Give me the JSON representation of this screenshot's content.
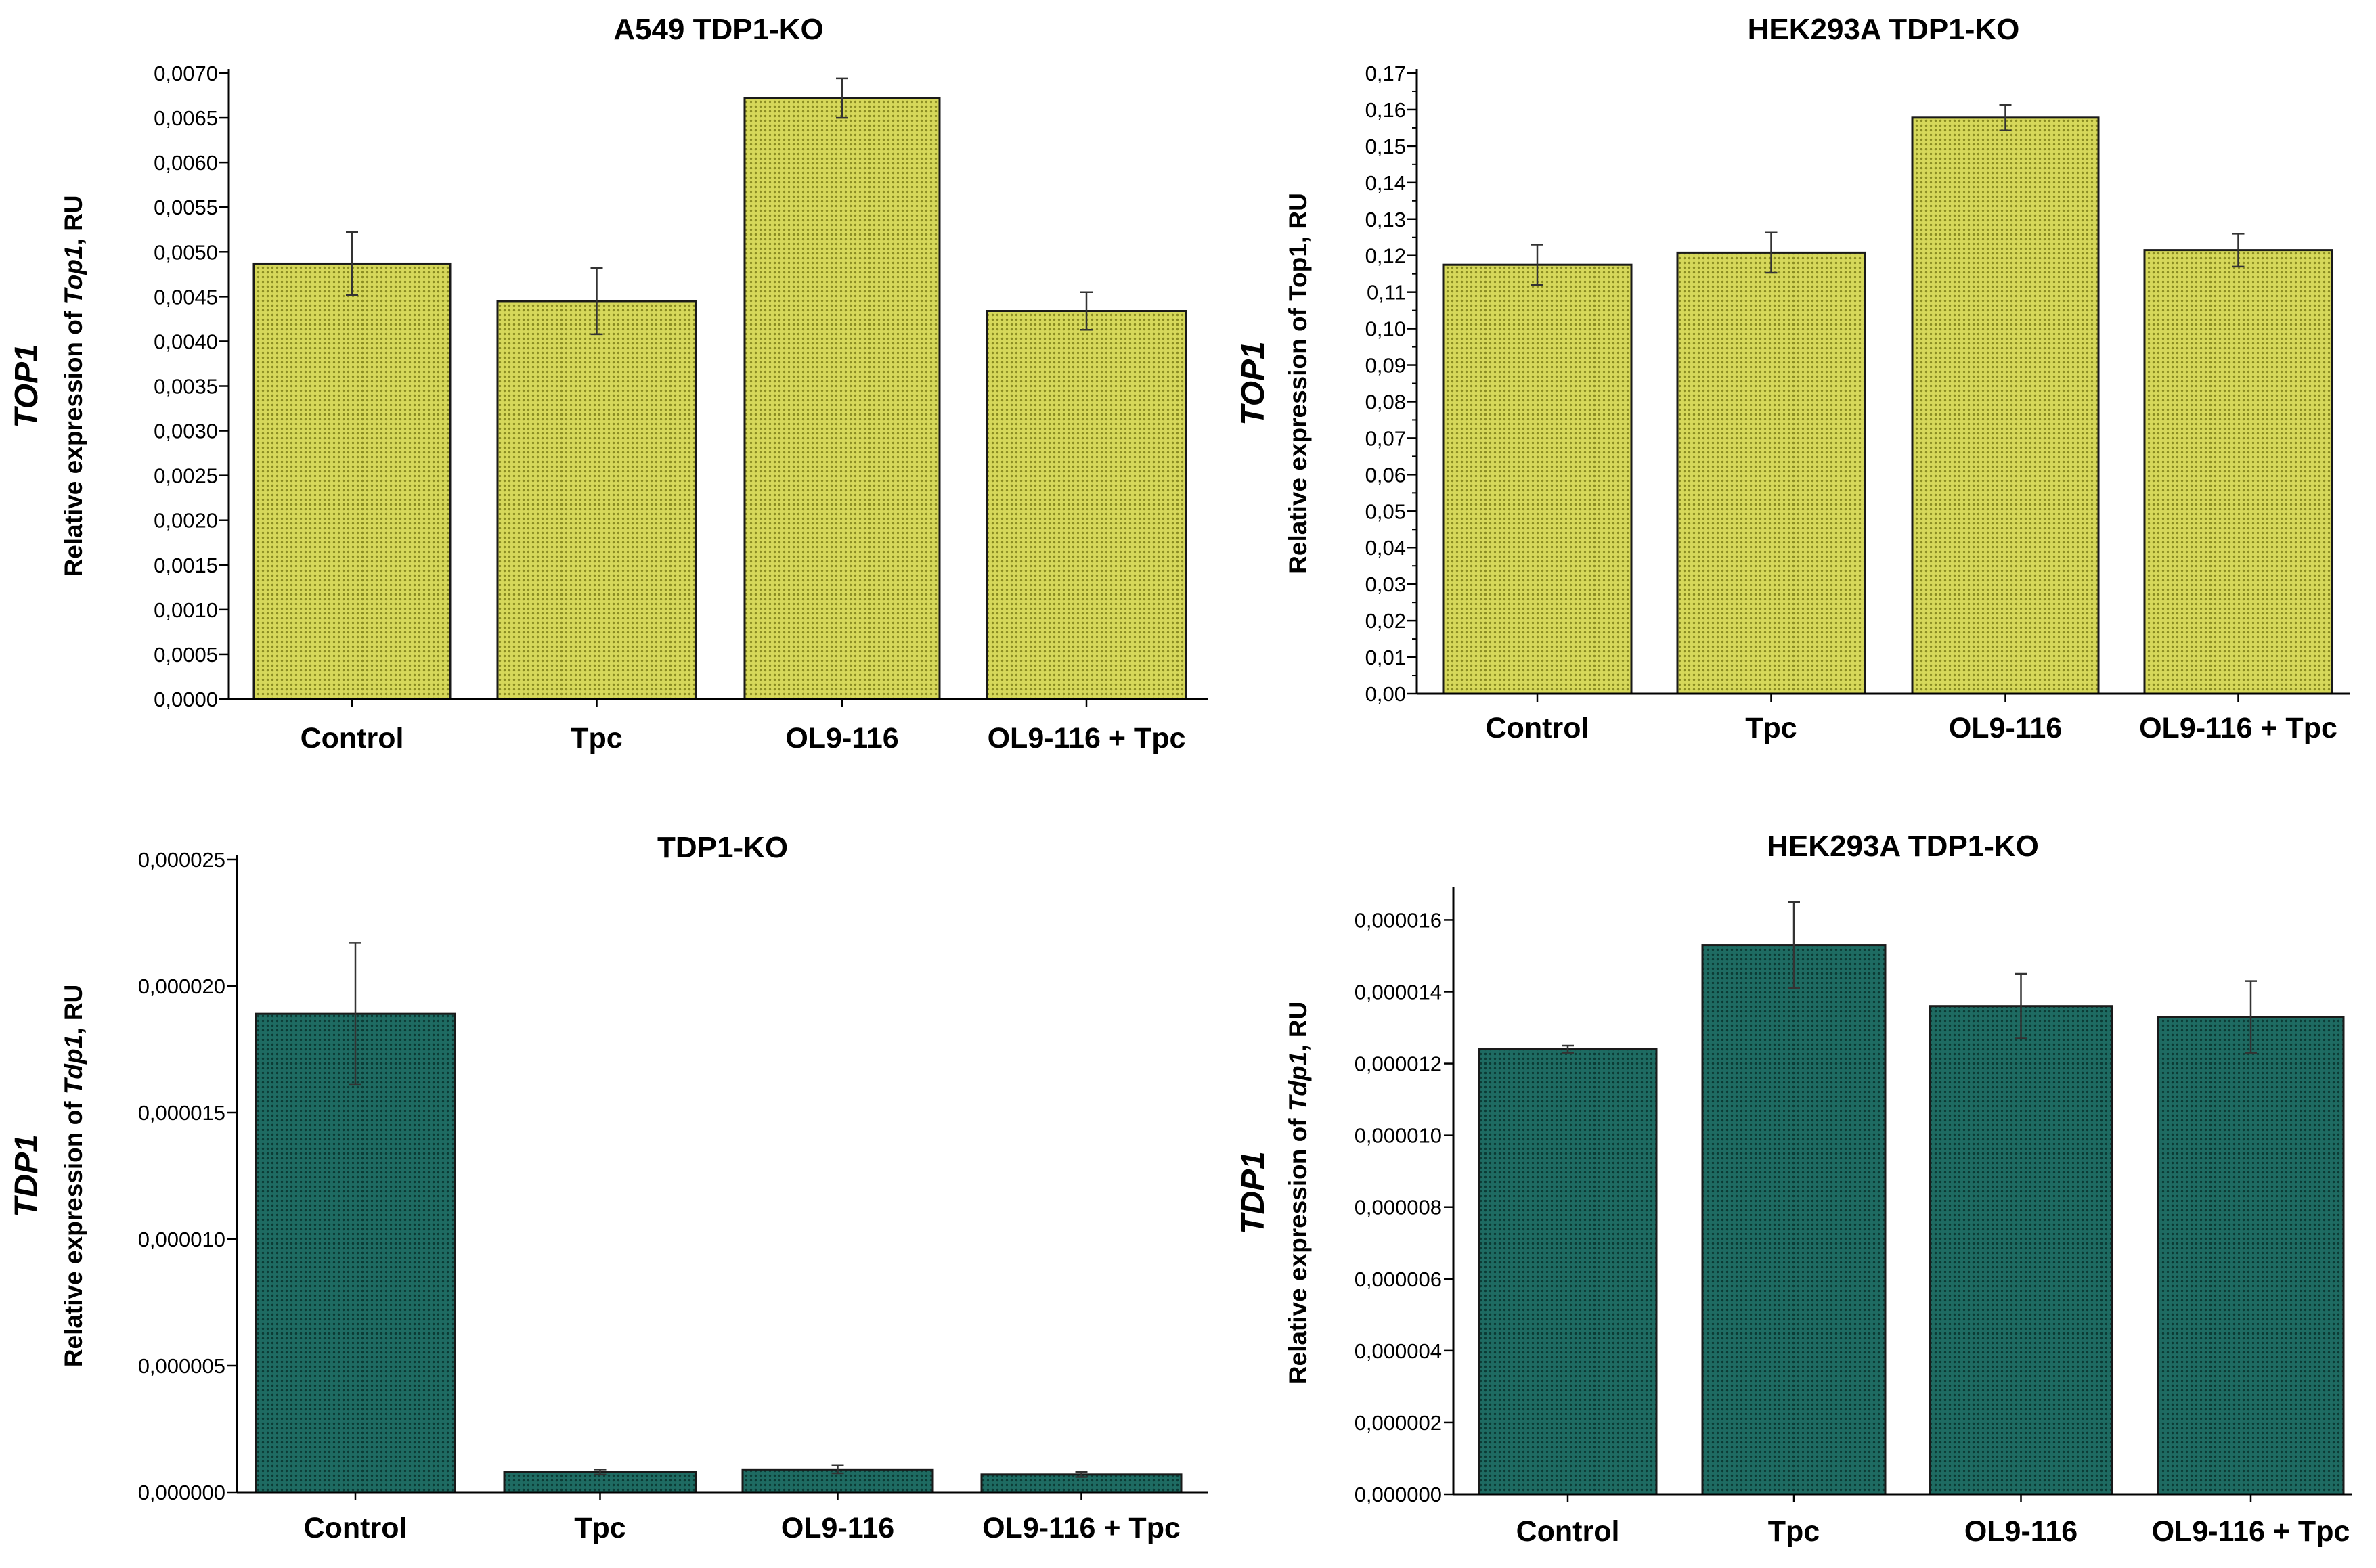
{
  "chart_data": [
    {
      "type": "bar",
      "title": "A549 TDP1-KO",
      "gene_label": "TOP1",
      "ylabel_prefix": "Relative expression of ",
      "ylabel_italic": "Top1",
      "ylabel_suffix": ", RU",
      "categories": [
        "Control",
        "Tpc",
        "OL9-116",
        "OL9-116 + Tpc"
      ],
      "values": [
        0.00487,
        0.00445,
        0.00672,
        0.00434
      ],
      "errors": [
        0.00035,
        0.00037,
        0.00022,
        0.00021
      ],
      "ylim": [
        0,
        0.007
      ],
      "yticks": [
        0,
        0.0005,
        0.001,
        0.0015,
        0.002,
        0.0025,
        0.003,
        0.0035,
        0.004,
        0.0045,
        0.005,
        0.0055,
        0.006,
        0.0065,
        0.007
      ],
      "ytick_labels": [
        "0,0000",
        "0,0005",
        "0,0010",
        "0,0015",
        "0,0020",
        "0,0025",
        "0,0030",
        "0,0035",
        "0,0040",
        "0,0045",
        "0,0050",
        "0,0055",
        "0,0060",
        "0,0065",
        "0,0070"
      ],
      "bar_color": "#d6d85a",
      "bar_dot_color": "#8a8c22",
      "minor_ticks": false
    },
    {
      "type": "bar",
      "title": "HEK293A TDP1-KO",
      "gene_label": "TOP1",
      "ylabel_prefix": "Relative expression of Top1, RU",
      "ylabel_italic": "",
      "ylabel_suffix": "",
      "categories": [
        "Control",
        "Tpc",
        "OL9-116",
        "OL9-116 + Tpc"
      ],
      "values": [
        0.1175,
        0.1208,
        0.1578,
        0.1215
      ],
      "errors": [
        0.0055,
        0.0055,
        0.0035,
        0.0045
      ],
      "ylim": [
        0,
        0.17
      ],
      "yticks": [
        0,
        0.01,
        0.02,
        0.03,
        0.04,
        0.05,
        0.06,
        0.07,
        0.08,
        0.09,
        0.1,
        0.11,
        0.12,
        0.13,
        0.14,
        0.15,
        0.16,
        0.17
      ],
      "ytick_labels": [
        "0,00",
        "0,01",
        "0,02",
        "0,03",
        "0,04",
        "0,05",
        "0,06",
        "0,07",
        "0,08",
        "0,09",
        "0,10",
        "0,11",
        "0,12",
        "0,13",
        "0,14",
        "0,15",
        "0,16",
        "0,17"
      ],
      "bar_color": "#d6d85a",
      "bar_dot_color": "#8a8c22",
      "minor_ticks": true
    },
    {
      "type": "bar",
      "title": "TDP1-KO",
      "gene_label": "TDP1",
      "ylabel_prefix": "Relative expression of ",
      "ylabel_italic": "Tdp1",
      "ylabel_suffix": ", RU",
      "categories": [
        "Control",
        "Tpc",
        "OL9-116",
        "OL9-116 + Tpc"
      ],
      "values": [
        1.89e-05,
        8e-07,
        9e-07,
        7e-07
      ],
      "errors": [
        2.8e-06,
        1e-07,
        1.5e-07,
        1e-07
      ],
      "ylim": [
        0,
        2.5e-05
      ],
      "yticks": [
        0,
        5e-06,
        1e-05,
        1.5e-05,
        2e-05,
        2.5e-05
      ],
      "ytick_labels": [
        "0,000000",
        "0,000005",
        "0,000010",
        "0,000015",
        "0,000020",
        "0,000025"
      ],
      "bar_color": "#1e6b62",
      "bar_dot_color": "#0b3a34",
      "minor_ticks": false
    },
    {
      "type": "bar",
      "title": "HEK293A TDP1-KO",
      "gene_label": "TDP1",
      "ylabel_prefix": "Relative expression of ",
      "ylabel_italic": "Tdp1",
      "ylabel_suffix": ", RU",
      "categories": [
        "Control",
        "Tpc",
        "OL9-116",
        "OL9-116 + Tpc"
      ],
      "values": [
        1.24e-05,
        1.53e-05,
        1.36e-05,
        1.33e-05
      ],
      "errors": [
        1e-07,
        1.2e-06,
        9e-07,
        1e-06
      ],
      "ylim": [
        0,
        1.68e-05
      ],
      "yticks": [
        0,
        2e-06,
        4e-06,
        6e-06,
        8e-06,
        1e-05,
        1.2e-05,
        1.4e-05,
        1.6e-05
      ],
      "ytick_labels": [
        "0,000000",
        "0,000002",
        "0,000004",
        "0,000006",
        "0,000008",
        "0,000010",
        "0,000012",
        "0,000014",
        "0,000016"
      ],
      "bar_color": "#1e6b62",
      "bar_dot_color": "#0b3a34",
      "minor_ticks": false
    }
  ]
}
